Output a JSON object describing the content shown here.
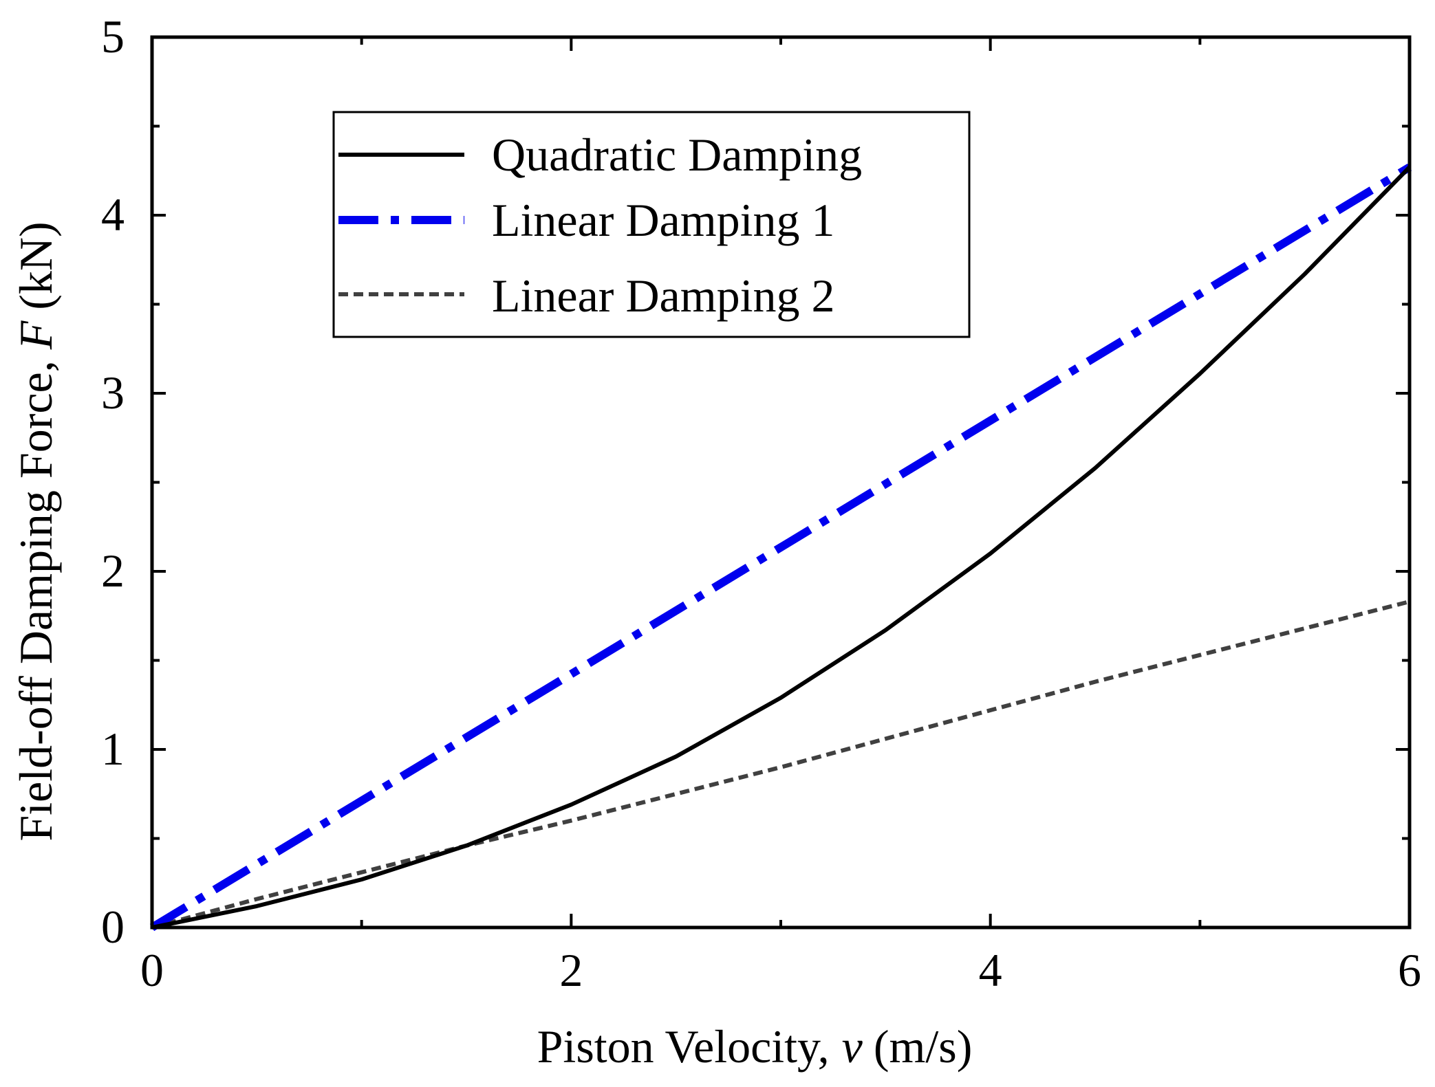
{
  "chart_data": {
    "type": "line",
    "title": "",
    "xlabel_main": "Piston Velocity,",
    "xlabel_var": "v",
    "xlabel_unit": "(m/s)",
    "ylabel_main": "Field-off Damping Force,",
    "ylabel_var": "F",
    "ylabel_unit": "(kN)",
    "xlim": [
      0,
      6
    ],
    "ylim": [
      0,
      5
    ],
    "x_ticks": [
      0,
      2,
      4,
      6
    ],
    "x_minor_ticks": [
      1,
      3,
      5
    ],
    "y_ticks": [
      0,
      1,
      2,
      3,
      4,
      5
    ],
    "y_minor_ticks": [
      0.5,
      1.5,
      2.5,
      3.5,
      4.5
    ],
    "grid": false,
    "legend_position": "top-center",
    "series": [
      {
        "name": "Quadratic Damping",
        "style": "solid",
        "color": "#000000",
        "x": [
          0,
          0.5,
          1,
          1.5,
          2,
          2.5,
          3,
          3.5,
          4,
          4.5,
          5,
          5.5,
          6
        ],
        "y": [
          0,
          0.12,
          0.27,
          0.46,
          0.69,
          0.96,
          1.29,
          1.67,
          2.1,
          2.58,
          3.11,
          3.67,
          4.27
        ]
      },
      {
        "name": "Linear Damping 1",
        "style": "dash-dot",
        "color": "#0000ee",
        "x": [
          0,
          6
        ],
        "y": [
          0,
          4.27
        ]
      },
      {
        "name": "Linear Damping 2",
        "style": "dashed",
        "color": "#404040",
        "x": [
          0,
          0.5,
          1,
          1.5,
          2,
          2.5,
          3,
          3.5,
          4,
          4.5,
          5,
          5.5,
          6
        ],
        "y": [
          0,
          0.16,
          0.31,
          0.46,
          0.6,
          0.75,
          0.9,
          1.06,
          1.22,
          1.38,
          1.53,
          1.68,
          1.83
        ]
      }
    ]
  }
}
